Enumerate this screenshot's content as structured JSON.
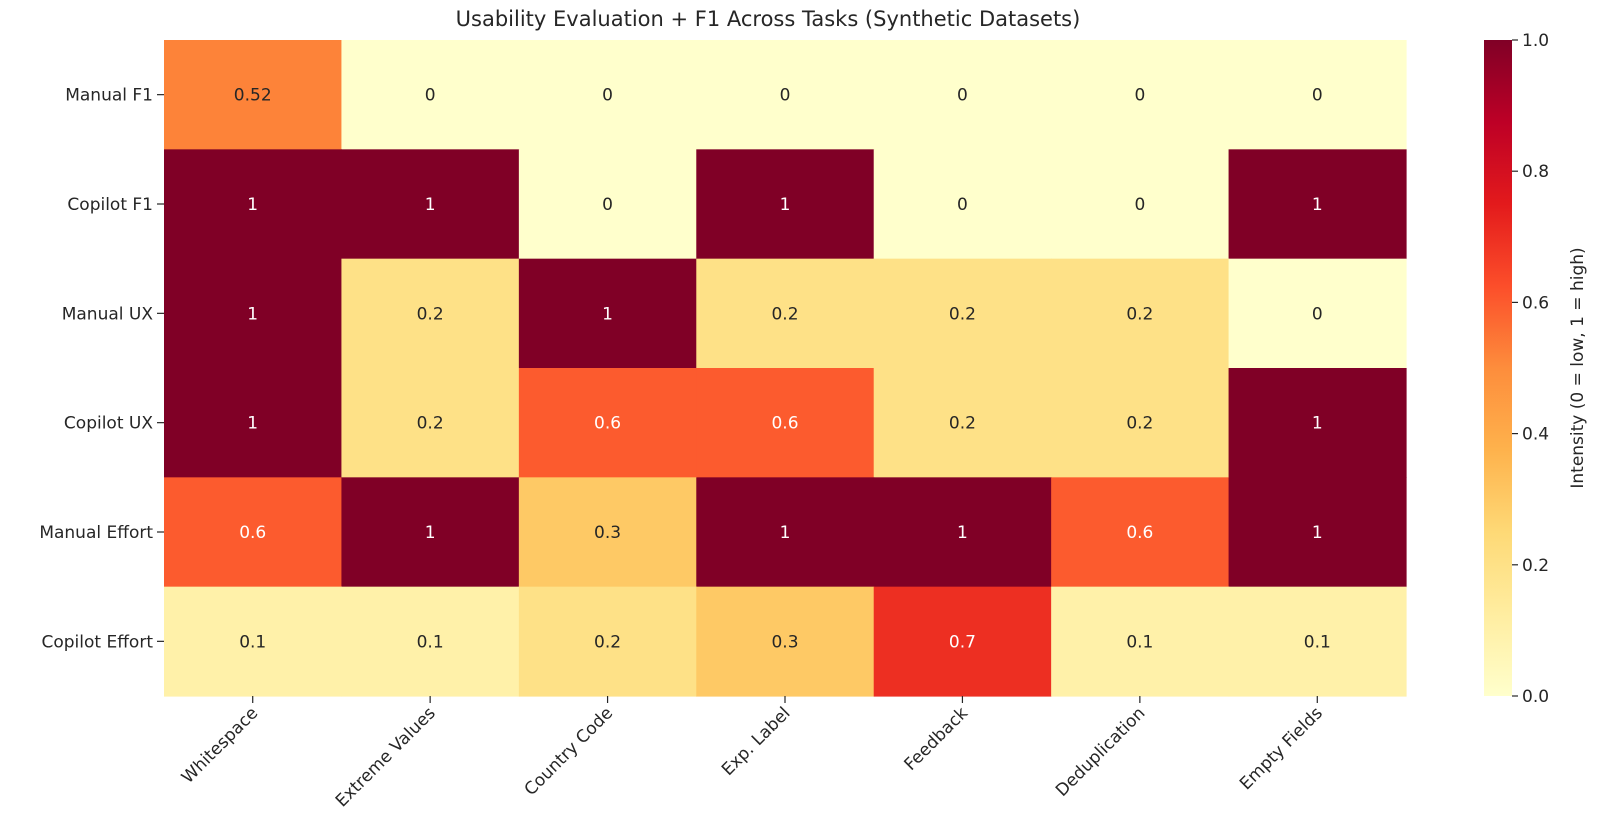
{
  "chart_data": {
    "type": "heatmap",
    "title": "Usability Evaluation + F1 Across Tasks (Synthetic Datasets)",
    "columns": [
      "Whitespace",
      "Extreme Values",
      "Country Code",
      "Exp. Label",
      "Feedback",
      "Deduplication",
      "Empty Fields"
    ],
    "rows": [
      "Manual F1",
      "Copilot F1",
      "Manual UX",
      "Copilot UX",
      "Manual Effort",
      "Copilot Effort"
    ],
    "values": [
      [
        0.52,
        0,
        0,
        0,
        0,
        0,
        0
      ],
      [
        1,
        1,
        0,
        1,
        0,
        0,
        1
      ],
      [
        1,
        0.2,
        1,
        0.2,
        0.2,
        0.2,
        0
      ],
      [
        1,
        0.2,
        0.6,
        0.6,
        0.2,
        0.2,
        1
      ],
      [
        0.6,
        1,
        0.3,
        1,
        1,
        0.6,
        1
      ],
      [
        0.1,
        0.1,
        0.2,
        0.3,
        0.7,
        0.1,
        0.1
      ]
    ],
    "value_labels": [
      [
        "0.52",
        "0",
        "0",
        "0",
        "0",
        "0",
        "0"
      ],
      [
        "1",
        "1",
        "0",
        "1",
        "0",
        "0",
        "1"
      ],
      [
        "1",
        "0.2",
        "1",
        "0.2",
        "0.2",
        "0.2",
        "0"
      ],
      [
        "1",
        "0.2",
        "0.6",
        "0.6",
        "0.2",
        "0.2",
        "1"
      ],
      [
        "0.6",
        "1",
        "0.3",
        "1",
        "1",
        "0.6",
        "1"
      ],
      [
        "0.1",
        "0.1",
        "0.2",
        "0.3",
        "0.7",
        "0.1",
        "0.1"
      ]
    ],
    "colormap": "YlOrRd",
    "vmin": 0,
    "vmax": 1,
    "colorbar": {
      "label": "Intensity (0 = low, 1 = high)",
      "ticks": [
        0.0,
        0.2,
        0.4,
        0.6,
        0.8,
        1.0
      ],
      "tick_labels": [
        "0.0",
        "0.2",
        "0.4",
        "0.6",
        "0.8",
        "1.0"
      ]
    },
    "grid": false,
    "legend": "colorbar-right"
  }
}
